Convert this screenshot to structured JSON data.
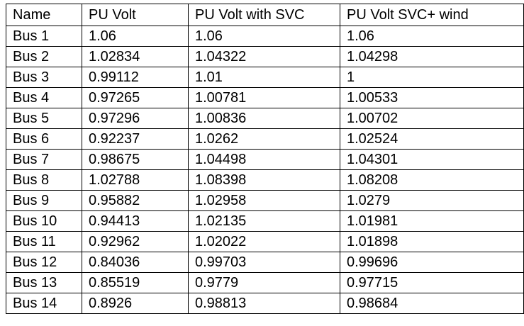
{
  "table": {
    "columns": [
      "Name",
      "PU Volt",
      "PU Volt with SVC",
      "PU Volt SVC+ wind"
    ],
    "rows": [
      [
        "Bus 1",
        "1.06",
        "1.06",
        "1.06"
      ],
      [
        "Bus 2",
        "1.02834",
        "1.04322",
        "1.04298"
      ],
      [
        "Bus 3",
        "0.99112",
        "1.01",
        "1"
      ],
      [
        "Bus 4",
        "0.97265",
        "1.00781",
        "1.00533"
      ],
      [
        "Bus 5",
        "0.97296",
        "1.00836",
        "1.00702"
      ],
      [
        "Bus 6",
        "0.92237",
        "1.0262",
        "1.02524"
      ],
      [
        "Bus 7",
        "0.98675",
        "1.04498",
        "1.04301"
      ],
      [
        "Bus 8",
        "1.02788",
        "1.08398",
        "1.08208"
      ],
      [
        "Bus 9",
        "0.95882",
        "1.02958",
        "1.0279"
      ],
      [
        "Bus 10",
        "0.94413",
        "1.02135",
        "1.01981"
      ],
      [
        "Bus 11",
        "0.92962",
        "1.02022",
        "1.01898"
      ],
      [
        "Bus 12",
        "0.84036",
        "0.99703",
        "0.99696"
      ],
      [
        "Bus 13",
        "0.85519",
        "0.9779",
        "0.97715"
      ],
      [
        "Bus 14",
        "0.8926",
        "0.98813",
        "0.98684"
      ]
    ]
  }
}
